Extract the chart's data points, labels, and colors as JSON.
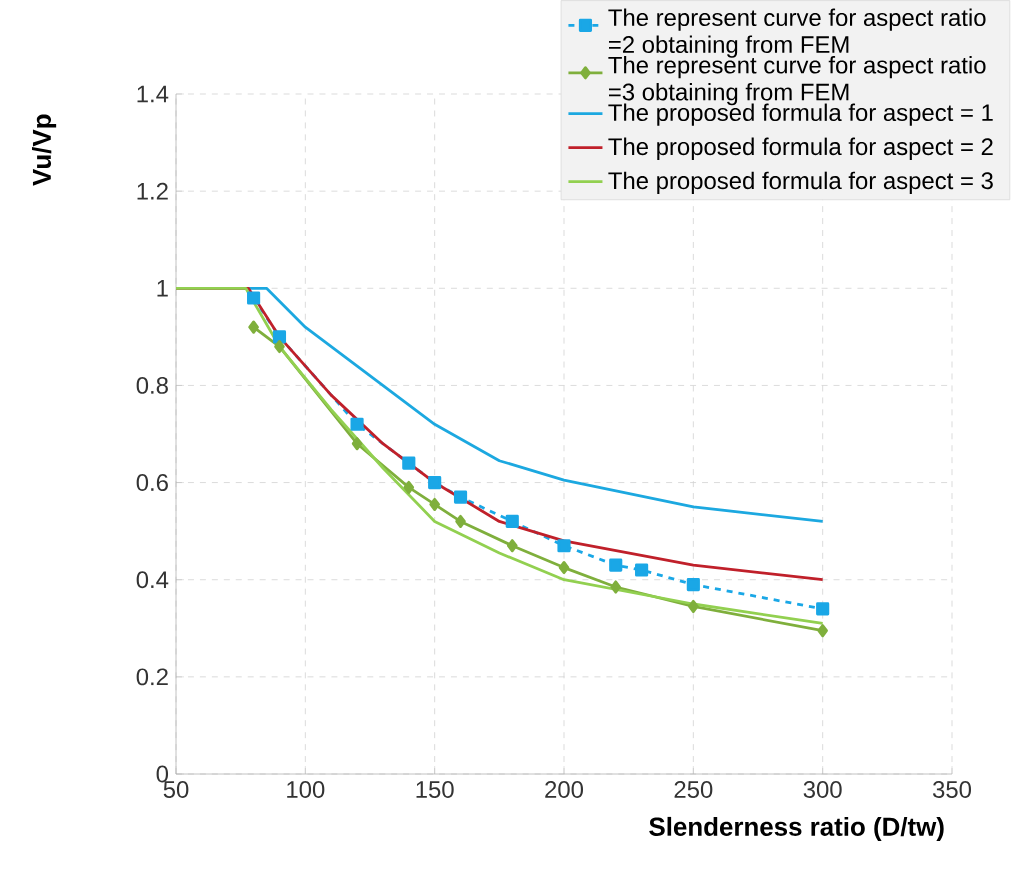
{
  "chart_data": {
    "type": "line",
    "xlabel": "Slenderness ratio (D/tw)",
    "ylabel": "Vu/Vp",
    "xlim": [
      50,
      350
    ],
    "xticks": [
      50,
      100,
      150,
      200,
      250,
      300,
      350
    ],
    "ylim": [
      0,
      1.4
    ],
    "yticks": [
      0,
      0.2,
      0.4,
      0.6,
      0.8,
      1,
      1.2,
      1.4
    ],
    "grid": true,
    "legend": "top right",
    "series": [
      {
        "name": "The represent curve for aspect ratio =2 obtaining from FEM",
        "color": "#1aa7e6",
        "marker": "square",
        "line_style": "dashed",
        "x": [
          80,
          90,
          120,
          140,
          150,
          160,
          180,
          200,
          220,
          230,
          250,
          300
        ],
        "values": [
          0.98,
          0.9,
          0.72,
          0.64,
          0.6,
          0.57,
          0.52,
          0.47,
          0.43,
          0.42,
          0.39,
          0.34
        ]
      },
      {
        "name": "The represent curve for aspect ratio =3 obtaining from FEM",
        "color": "#7faf3c",
        "marker": "diamond",
        "line_style": "solid",
        "x": [
          80,
          90,
          120,
          140,
          150,
          160,
          180,
          200,
          220,
          250,
          300
        ],
        "values": [
          0.92,
          0.88,
          0.68,
          0.59,
          0.555,
          0.52,
          0.47,
          0.425,
          0.385,
          0.345,
          0.295
        ]
      },
      {
        "name": "The proposed formula for aspect = 1",
        "color": "#1ca8e0",
        "marker": "none",
        "line_style": "solid",
        "x": [
          50,
          85,
          100,
          125,
          150,
          175,
          200,
          250,
          300
        ],
        "values": [
          1,
          1,
          0.92,
          0.82,
          0.72,
          0.645,
          0.605,
          0.55,
          0.52
        ]
      },
      {
        "name": "The proposed formula for aspect = 2",
        "color": "#c0202a",
        "marker": "none",
        "line_style": "solid",
        "x": [
          50,
          78,
          90,
          110,
          130,
          150,
          175,
          200,
          250,
          300
        ],
        "values": [
          1,
          1,
          0.9,
          0.78,
          0.68,
          0.6,
          0.52,
          0.48,
          0.43,
          0.4
        ]
      },
      {
        "name": "The proposed formula for aspect = 3",
        "color": "#92d050",
        "marker": "none",
        "line_style": "solid",
        "x": [
          50,
          77,
          90,
          110,
          130,
          150,
          175,
          200,
          250,
          300
        ],
        "values": [
          1,
          1,
          0.88,
          0.75,
          0.63,
          0.52,
          0.455,
          0.4,
          0.35,
          0.31
        ]
      }
    ]
  }
}
